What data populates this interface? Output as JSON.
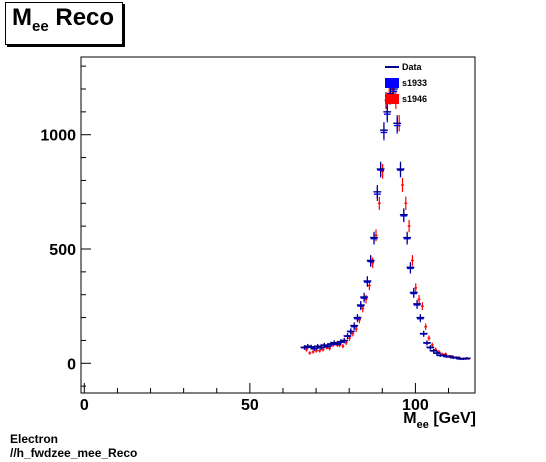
{
  "title": {
    "main": "M",
    "sub": "ee",
    "rest": " Reco"
  },
  "footer": {
    "line1": "Electron",
    "line2": "//h_fwdzee_mee_Reco"
  },
  "colors": {
    "data": "#00008b",
    "s1933": "#0000ff",
    "s1946": "#ff0000"
  },
  "chart_data": {
    "type": "scatter",
    "title": "Mee Reco",
    "xlabel": "M_ee [GeV]",
    "xlabel_parts": {
      "main": "M",
      "sub": "ee",
      "rest": " [GeV]"
    },
    "ylabel": "",
    "xlim": [
      -1,
      118
    ],
    "ylim": [
      -130,
      1340
    ],
    "xticks": [
      0,
      50,
      100
    ],
    "yticks": [
      0,
      500,
      1000
    ],
    "grid": false,
    "legend_position": "top-right",
    "legend": [
      {
        "name": "Data",
        "style": "line"
      },
      {
        "name": "s1933",
        "style": "box"
      },
      {
        "name": "s1946",
        "style": "box"
      }
    ],
    "x": [
      66.5,
      67.5,
      68.5,
      69.5,
      70.5,
      71.5,
      72.5,
      73.5,
      74.5,
      75.5,
      76.5,
      77.5,
      78.5,
      79.5,
      80.5,
      81.5,
      82.5,
      83.5,
      84.5,
      85.5,
      86.5,
      87.5,
      88.5,
      89.5,
      90.5,
      91.5,
      92.5,
      93.5,
      94.5,
      95.5,
      96.5,
      97.5,
      98.5,
      99.5,
      100.5,
      101.5,
      102.5,
      103.5,
      104.5,
      105.5,
      106.5,
      107.5,
      108.5,
      109.5,
      110.5,
      111.5,
      112.5,
      113.5,
      114.5,
      115.5
    ],
    "series": [
      {
        "name": "Data",
        "values": [
          70,
          75,
          72,
          65,
          75,
          70,
          80,
          75,
          85,
          90,
          85,
          95,
          100,
          120,
          140,
          165,
          200,
          255,
          290,
          360,
          450,
          550,
          750,
          850,
          1020,
          1100,
          1180,
          1200,
          1050,
          850,
          650,
          550,
          420,
          310,
          260,
          200,
          130,
          90,
          70,
          55,
          45,
          35,
          35,
          30,
          30,
          25,
          25,
          20,
          20,
          22
        ]
      },
      {
        "name": "s1933",
        "values": [
          68,
          73,
          70,
          63,
          72,
          68,
          78,
          73,
          82,
          88,
          83,
          92,
          98,
          118,
          138,
          160,
          195,
          250,
          285,
          355,
          445,
          545,
          740,
          845,
          1010,
          1090,
          1170,
          1190,
          1040,
          845,
          645,
          545,
          415,
          305,
          255,
          195,
          128,
          88,
          68,
          54,
          44,
          34,
          34,
          29,
          29,
          24,
          24,
          19,
          19,
          21
        ]
      },
      {
        "name": "s1946",
        "values": [
          60,
          45,
          50,
          55,
          55,
          60,
          70,
          65,
          80,
          85,
          80,
          75,
          90,
          110,
          130,
          150,
          190,
          240,
          280,
          340,
          440,
          560,
          700,
          840,
          1150,
          1170,
          1200,
          1150,
          1050,
          780,
          700,
          600,
          450,
          330,
          280,
          250,
          160,
          110,
          80,
          60,
          50,
          40,
          40,
          30,
          30,
          25,
          25,
          20,
          20,
          20
        ]
      }
    ]
  }
}
